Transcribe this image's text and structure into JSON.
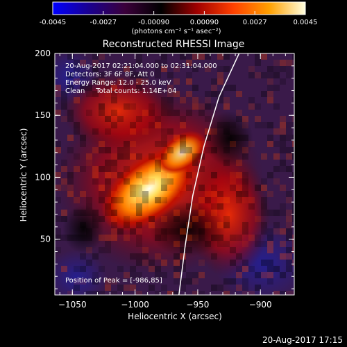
{
  "colorbar": {
    "ticks": [
      "-0.0045",
      "-0.0027",
      "-0.00090",
      "0.00090",
      "0.0027",
      "0.0045"
    ],
    "tick_values": [
      -0.0045,
      -0.0027,
      -0.0009,
      0.0009,
      0.0027,
      0.0045
    ],
    "range": [
      -0.0045,
      0.0045
    ],
    "units": "(photons cm⁻² s⁻¹ asec⁻²)",
    "colors": [
      "#0000ff",
      "#1a0090",
      "#3b003a",
      "#000000",
      "#a00000",
      "#ff4000",
      "#ffa000",
      "#ffffe0"
    ]
  },
  "chart_data": {
    "type": "heatmap",
    "title": "Reconstructed RHESSI Image",
    "xlabel": "Heliocentric X (arcsec)",
    "ylabel": "Heliocentric Y (arcsec)",
    "xlim": [
      -1064,
      -873
    ],
    "ylim": [
      5,
      200
    ],
    "x_ticks": [
      -1050,
      -1000,
      -950,
      -900
    ],
    "x_tick_labels": [
      "−1050",
      "−1000",
      "−950",
      "−900"
    ],
    "y_ticks": [
      50,
      100,
      150,
      200
    ],
    "y_tick_labels": [
      "50",
      "100",
      "150",
      "200"
    ],
    "peak_position": [
      -986,
      85
    ],
    "annotations": [
      "20-Aug-2017 02:21:04.000 to 02:31:04.000",
      "Detectors: 3F 6F 8F, Att 0",
      "Energy Range: 12.0 - 25.0 keV",
      "Clean     Total counts: 1.14E+04"
    ],
    "peak_label": "Position of Peak = [-986,85]",
    "limb_curve": [
      [
        -965,
        5
      ],
      [
        -960,
        45
      ],
      [
        -954,
        85
      ],
      [
        -945,
        125
      ],
      [
        -933,
        165
      ],
      [
        -917,
        200
      ]
    ]
  },
  "footer": {
    "timestamp": "20-Aug-2017 17:15"
  }
}
